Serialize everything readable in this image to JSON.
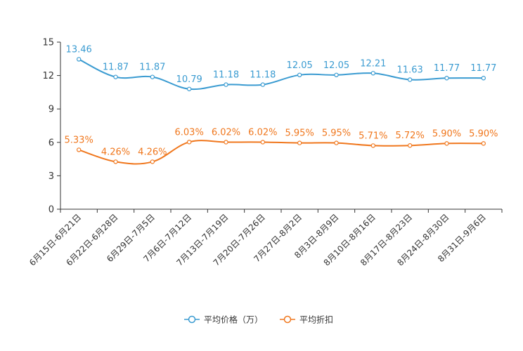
{
  "chart_data": {
    "type": "line",
    "title": "",
    "xlabel": "",
    "ylabel": "",
    "ylim": [
      0,
      15
    ],
    "yticks": [
      "0",
      "3",
      "6",
      "9",
      "12",
      "15"
    ],
    "grid": false,
    "legend_position": "bottom-center",
    "categories": [
      "6月15日-6月21日",
      "6月22日-6月28日",
      "6月29日-7月5日",
      "7月6日-7月12日",
      "7月13日-7月19日",
      "7月20日-7月26日",
      "7月27日-8月2日",
      "8月3日-8月9日",
      "8月10日-8月16日",
      "8月17日-8月23日",
      "8月24日-8月30日",
      "8月31日-9月6日"
    ],
    "series": [
      {
        "name": "平均价格（万）",
        "color": "#3a9bd1",
        "values": [
          13.46,
          11.87,
          11.87,
          10.79,
          11.18,
          11.18,
          12.05,
          12.05,
          12.21,
          11.63,
          11.77,
          11.77
        ],
        "labels": [
          "13.46",
          "11.87",
          "11.87",
          "10.79",
          "11.18",
          "11.18",
          "12.05",
          "12.05",
          "12.21",
          "11.63",
          "11.77",
          "11.77"
        ]
      },
      {
        "name": "平均折扣",
        "color": "#f0771d",
        "values": [
          5.33,
          4.26,
          4.26,
          6.03,
          6.02,
          6.02,
          5.95,
          5.95,
          5.71,
          5.72,
          5.9,
          5.9
        ],
        "labels": [
          "5.33%",
          "4.26%",
          "4.26%",
          "6.03%",
          "6.02%",
          "6.02%",
          "5.95%",
          "5.95%",
          "5.71%",
          "5.72%",
          "5.90%",
          "5.90%"
        ]
      }
    ]
  }
}
